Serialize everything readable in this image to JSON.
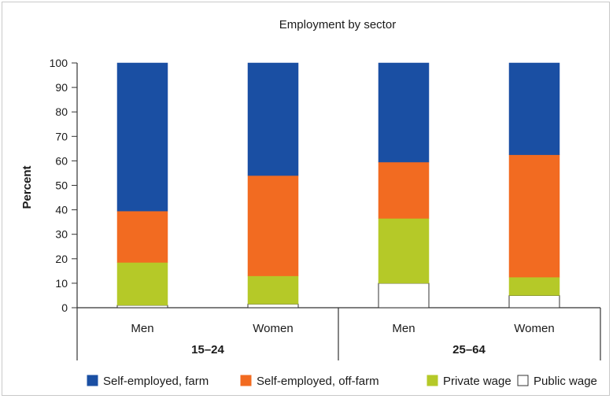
{
  "chart_data": {
    "type": "bar",
    "stacked": true,
    "title": "Employment by sector",
    "ylabel": "Percent",
    "xlabel": "",
    "ylim": [
      0,
      100
    ],
    "yticks": [
      0,
      10,
      20,
      30,
      40,
      50,
      60,
      70,
      80,
      90,
      100
    ],
    "categories": [
      "Men",
      "Women",
      "Men",
      "Women"
    ],
    "groups": [
      {
        "label": "15–24",
        "categories": [
          0,
          1
        ]
      },
      {
        "label": "25–64",
        "categories": [
          2,
          3
        ]
      }
    ],
    "series": [
      {
        "name": "Public wage",
        "color": "#ffffff",
        "values": [
          1,
          1.5,
          10,
          5
        ]
      },
      {
        "name": "Private wage",
        "color": "#b5c928",
        "values": [
          17.5,
          11.5,
          26.5,
          7.5
        ]
      },
      {
        "name": "Self-employed, off-farm",
        "color": "#f26b21",
        "values": [
          21,
          41,
          23,
          50
        ]
      },
      {
        "name": "Self-employed, farm",
        "color": "#1a4fa3",
        "values": [
          60.5,
          46,
          40.5,
          37.5
        ]
      }
    ],
    "legend": {
      "position": "bottom",
      "order": [
        "Self-employed, farm",
        "Self-employed, off-farm",
        "Private wage",
        "Public wage"
      ]
    },
    "grid": false
  }
}
